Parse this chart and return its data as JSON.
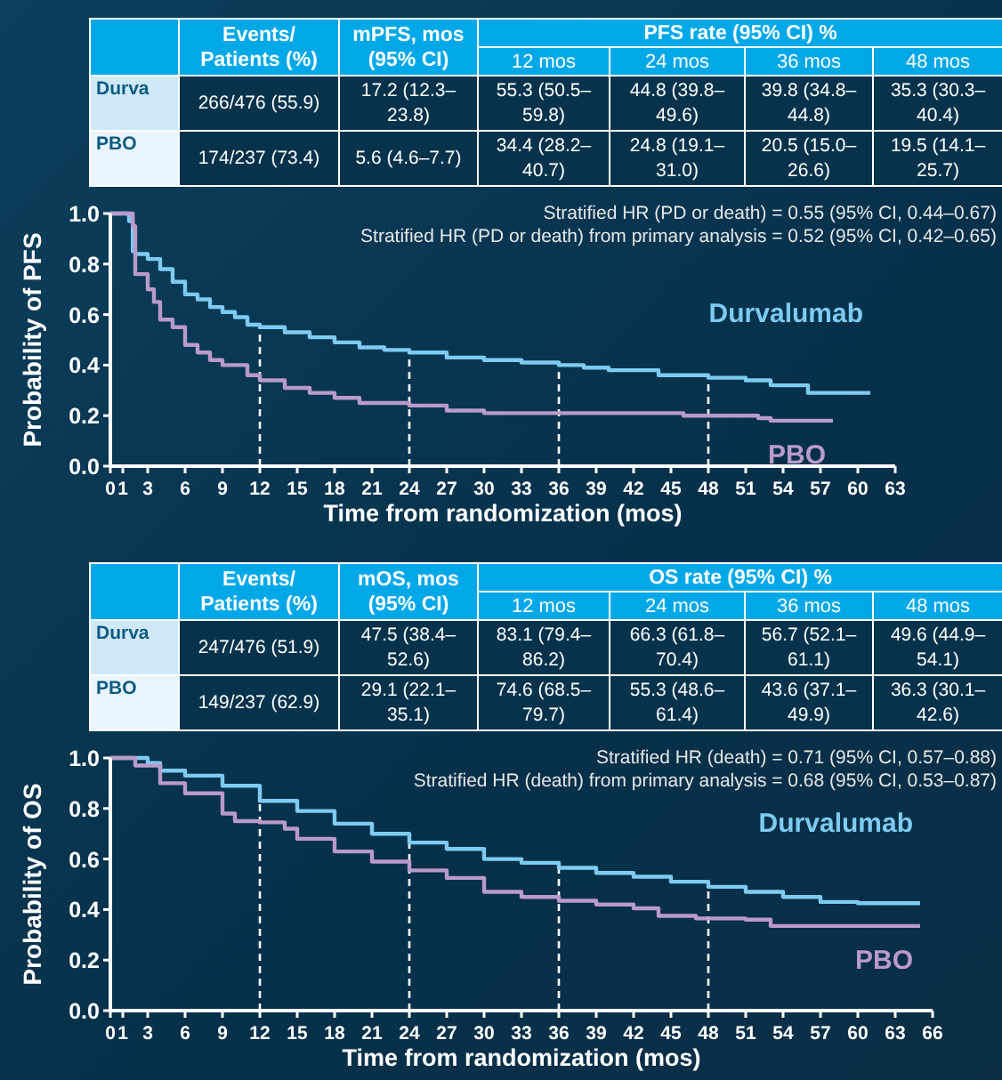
{
  "chart_data": [
    {
      "type": "step",
      "xlabel": "Time from randomization (mos)",
      "ylabel": "Probability of PFS",
      "xlim": [
        0,
        63
      ],
      "xticks": [
        0,
        1,
        3,
        6,
        9,
        12,
        15,
        18,
        21,
        24,
        27,
        30,
        33,
        36,
        39,
        42,
        45,
        48,
        51,
        54,
        57,
        60,
        63
      ],
      "ylim": [
        0,
        1
      ],
      "yticks": [
        {
          "value": 0,
          "label": "0.0"
        },
        {
          "value": 0.2,
          "label": "0.2"
        },
        {
          "value": 0.4,
          "label": "0.4"
        },
        {
          "value": 0.6,
          "label": "0.6"
        },
        {
          "value": 0.8,
          "label": "0.8"
        },
        {
          "value": 1,
          "label": "1.0"
        }
      ],
      "grid": false,
      "series": [
        {
          "name": "Durvalumab",
          "color": "#7ecbf2",
          "x": [
            0,
            1,
            1.5,
            1.8,
            2,
            3,
            4,
            5,
            6,
            7,
            8,
            9,
            10,
            11,
            12,
            14,
            16,
            18,
            20,
            22,
            24,
            27,
            30,
            33,
            36,
            38,
            40,
            44,
            48,
            51,
            53,
            56,
            61
          ],
          "values": [
            1,
            1,
            0.97,
            0.85,
            0.84,
            0.82,
            0.78,
            0.73,
            0.68,
            0.66,
            0.63,
            0.61,
            0.59,
            0.56,
            0.55,
            0.53,
            0.51,
            0.49,
            0.47,
            0.46,
            0.45,
            0.43,
            0.42,
            0.41,
            0.4,
            0.39,
            0.38,
            0.36,
            0.35,
            0.34,
            0.32,
            0.29,
            0.29
          ]
        },
        {
          "name": "PBO",
          "color": "#b99ac9",
          "x": [
            0,
            1.8,
            2,
            3,
            3.5,
            4,
            5,
            6,
            7,
            8,
            9,
            11,
            12,
            14,
            16,
            18,
            20,
            24,
            27,
            30,
            33,
            40,
            46,
            52,
            53,
            58
          ],
          "values": [
            1,
            0.95,
            0.76,
            0.7,
            0.65,
            0.58,
            0.55,
            0.48,
            0.45,
            0.42,
            0.4,
            0.36,
            0.34,
            0.31,
            0.29,
            0.27,
            0.25,
            0.24,
            0.22,
            0.21,
            0.21,
            0.21,
            0.2,
            0.19,
            0.18,
            0.18
          ]
        }
      ],
      "ref_lines": [
        {
          "axis": "x",
          "value": 12,
          "color": "#ffffff",
          "line_style": "dashed"
        },
        {
          "axis": "x",
          "value": 24,
          "color": "#ffffff",
          "line_style": "dashed"
        },
        {
          "axis": "x",
          "value": 36,
          "color": "#ffffff",
          "line_style": "dashed"
        },
        {
          "axis": "x",
          "value": 48,
          "color": "#ffffff",
          "line_style": "dashed"
        }
      ],
      "annotations": [
        "Events/ Patients (%)",
        "mPFS, mos (95% CI)",
        "PFS rate (95% CI) %",
        "12 mos",
        "24 mos",
        "36 mos",
        "48 mos",
        "Durva",
        "266/476 (55.9)",
        "17.2 (12.3–23.8)",
        "55.3 (50.5–59.8)",
        "44.8 (39.8–49.6)",
        "39.8 (34.8–44.8)",
        "35.3 (30.3–40.4)",
        "PBO",
        "174/237 (73.4)",
        "5.6 (4.6–7.7)",
        "34.4 (28.2–40.7)",
        "24.8 (19.1–31.0)",
        "20.5 (15.0–26.6)",
        "19.5 (14.1–25.7)",
        "Stratified HR (PD or death) = 0.55 (95% CI, 0.44–0.67)",
        "Stratified HR (PD or death) from primary analysis = 0.52 (95% CI, 0.42–0.65)"
      ]
    },
    {
      "type": "step",
      "xlabel": "Time from randomization (mos)",
      "ylabel": "Probability of OS",
      "xlim": [
        0,
        66
      ],
      "xticks": [
        0,
        1,
        3,
        6,
        9,
        12,
        15,
        18,
        21,
        24,
        27,
        30,
        33,
        36,
        39,
        42,
        45,
        48,
        51,
        54,
        57,
        60,
        63,
        66
      ],
      "ylim": [
        0,
        1
      ],
      "yticks": [
        {
          "value": 0,
          "label": "0.0"
        },
        {
          "value": 0.2,
          "label": "0.2"
        },
        {
          "value": 0.4,
          "label": "0.4"
        },
        {
          "value": 0.6,
          "label": "0.6"
        },
        {
          "value": 0.8,
          "label": "0.8"
        },
        {
          "value": 1,
          "label": "1.0"
        }
      ],
      "grid": false,
      "series": [
        {
          "name": "Durvalumab",
          "color": "#7ecbf2",
          "x": [
            0,
            3,
            4,
            6,
            9,
            12,
            15,
            18,
            21,
            24,
            27,
            30,
            33,
            36,
            39,
            42,
            45,
            48,
            51,
            54,
            57,
            60,
            65
          ],
          "values": [
            1,
            0.98,
            0.95,
            0.93,
            0.89,
            0.83,
            0.79,
            0.74,
            0.7,
            0.665,
            0.64,
            0.6,
            0.585,
            0.565,
            0.545,
            0.53,
            0.51,
            0.49,
            0.47,
            0.45,
            0.43,
            0.425,
            0.425
          ]
        },
        {
          "name": "PBO",
          "color": "#b99ac9",
          "x": [
            0,
            2,
            4,
            6,
            9,
            10,
            12,
            14,
            15,
            18,
            21,
            24,
            27,
            30,
            33,
            36,
            39,
            42,
            44,
            47,
            51,
            53,
            65
          ],
          "values": [
            1,
            0.97,
            0.9,
            0.86,
            0.78,
            0.75,
            0.745,
            0.72,
            0.68,
            0.63,
            0.59,
            0.555,
            0.525,
            0.47,
            0.45,
            0.435,
            0.42,
            0.405,
            0.375,
            0.365,
            0.36,
            0.335,
            0.335
          ]
        }
      ],
      "ref_lines": [
        {
          "axis": "x",
          "value": 12,
          "color": "#ffffff",
          "line_style": "dashed"
        },
        {
          "axis": "x",
          "value": 24,
          "color": "#ffffff",
          "line_style": "dashed"
        },
        {
          "axis": "x",
          "value": 36,
          "color": "#ffffff",
          "line_style": "dashed"
        },
        {
          "axis": "x",
          "value": 48,
          "color": "#ffffff",
          "line_style": "dashed"
        }
      ],
      "annotations": [
        "Events/ Patients (%)",
        "mOS, mos (95% CI)",
        "OS rate (95% CI) %",
        "12 mos",
        "24 mos",
        "36 mos",
        "48 mos",
        "Durva",
        "247/476 (51.9)",
        "47.5 (38.4–52.6)",
        "83.1 (79.4–86.2)",
        "66.3 (61.8–70.4)",
        "56.7 (52.1–61.1)",
        "49.6 (44.9–54.1)",
        "PBO",
        "149/237 (62.9)",
        "29.1 (22.1–35.1)",
        "74.6 (68.5–79.7)",
        "55.3 (48.6–61.4)",
        "43.6 (37.1–49.9)",
        "36.3 (30.1–42.6)",
        "Stratified HR (death) = 0.71 (95% CI, 0.57–0.88)",
        "Stratified HR (death) from primary analysis = 0.68 (95% CI, 0.53–0.87)"
      ]
    }
  ]
}
